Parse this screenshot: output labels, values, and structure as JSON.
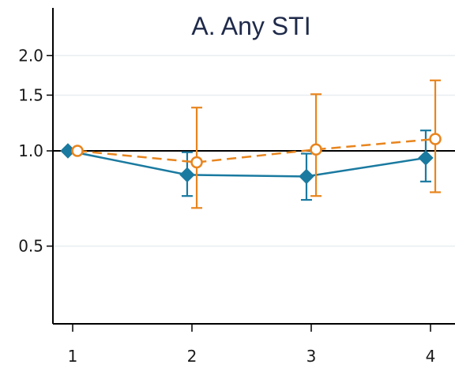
{
  "chart_data": {
    "type": "line",
    "title": "A. Any STI",
    "xlabel": "",
    "ylabel": "",
    "y_scale": "log",
    "x": [
      1,
      2,
      3,
      4
    ],
    "x_ticks": [
      "1",
      "2",
      "3",
      "4"
    ],
    "y_ticks": [
      {
        "value": 2.0,
        "label": "2.0"
      },
      {
        "value": 1.5,
        "label": "1.5"
      },
      {
        "value": 1.0,
        "label": "1.0"
      },
      {
        "value": 0.5,
        "label": "0.5"
      }
    ],
    "ylim": [
      0.35,
      2.6
    ],
    "reference_line": 1.0,
    "grid": true,
    "series": [
      {
        "color": "#1a7aa0",
        "marker": "diamond",
        "line_style": "solid",
        "x_offset": -0.04,
        "values": [
          1.0,
          0.84,
          0.83,
          0.95
        ],
        "lower": [
          null,
          0.72,
          0.7,
          0.8
        ],
        "upper": [
          null,
          0.99,
          0.98,
          1.16
        ]
      },
      {
        "color": "#e8851e",
        "marker": "open-circle",
        "line_style": "dashed",
        "x_offset": 0.04,
        "values": [
          1.0,
          0.92,
          1.01,
          1.09
        ],
        "lower": [
          null,
          0.66,
          0.72,
          0.74
        ],
        "upper": [
          null,
          1.37,
          1.51,
          1.67
        ]
      }
    ]
  }
}
